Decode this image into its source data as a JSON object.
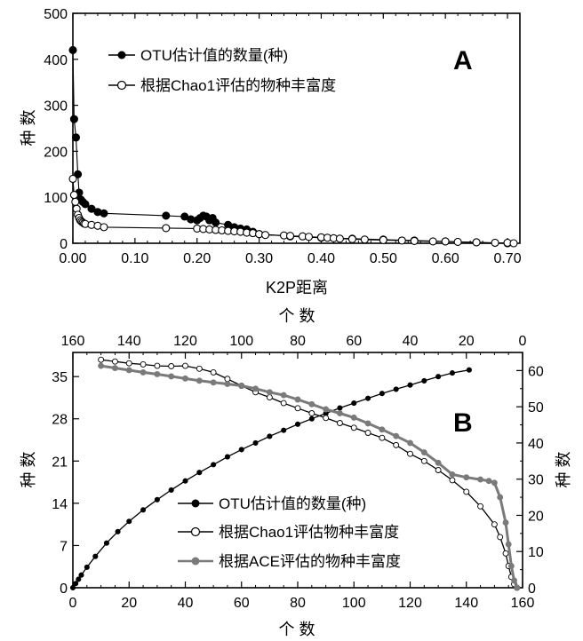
{
  "figure": {
    "colors": {
      "black": "#000000",
      "gray": "#7a7a7a",
      "white": "#ffffff"
    }
  },
  "chart_data": [
    {
      "id": "A",
      "type": "scatter",
      "panel_label": "A",
      "xlabel": "K2P距离",
      "ylabel": "种 数",
      "xlim": [
        0,
        0.72
      ],
      "ylim": [
        0,
        500
      ],
      "x_ticks": [
        0,
        0.1,
        0.2,
        0.3,
        0.4,
        0.5,
        0.6,
        0.7
      ],
      "x_tick_labels": [
        "0.00",
        "0.10",
        "0.20",
        "0.30",
        "0.40",
        "0.50",
        "0.60",
        "0.70"
      ],
      "y_ticks": [
        0,
        100,
        200,
        300,
        400,
        500
      ],
      "y_tick_labels": [
        "0",
        "100",
        "200",
        "300",
        "400",
        "500"
      ],
      "legend_position": "top-left",
      "grid": false,
      "series": [
        {
          "name": "OTU估计值的数量(种)",
          "marker": "filled-circle",
          "color": "#000000",
          "x": [
            0.0,
            0.002,
            0.005,
            0.008,
            0.01,
            0.013,
            0.016,
            0.02,
            0.03,
            0.04,
            0.05,
            0.15,
            0.18,
            0.19,
            0.2,
            0.205,
            0.21,
            0.215,
            0.22,
            0.225,
            0.23,
            0.25,
            0.26,
            0.27,
            0.28,
            0.29,
            0.3,
            0.35,
            0.4,
            0.45,
            0.5,
            0.55,
            0.6,
            0.65,
            0.7
          ],
          "y": [
            420,
            270,
            230,
            150,
            110,
            95,
            90,
            85,
            75,
            68,
            65,
            60,
            58,
            52,
            50,
            55,
            60,
            58,
            50,
            55,
            45,
            40,
            35,
            32,
            30,
            25,
            20,
            15,
            12,
            10,
            8,
            6,
            4,
            2,
            0
          ]
        },
        {
          "name": "根据Chao1评估的物种丰富度",
          "marker": "open-circle",
          "color": "#000000",
          "x": [
            0.0,
            0.002,
            0.004,
            0.006,
            0.008,
            0.01,
            0.012,
            0.014,
            0.016,
            0.018,
            0.02,
            0.03,
            0.04,
            0.05,
            0.15,
            0.2,
            0.21,
            0.22,
            0.23,
            0.24,
            0.25,
            0.26,
            0.27,
            0.28,
            0.29,
            0.3,
            0.31,
            0.34,
            0.35,
            0.37,
            0.38,
            0.4,
            0.41,
            0.42,
            0.43,
            0.45,
            0.47,
            0.5,
            0.53,
            0.55,
            0.58,
            0.6,
            0.62,
            0.65,
            0.68,
            0.7,
            0.71
          ],
          "y": [
            140,
            105,
            90,
            75,
            62,
            55,
            50,
            47,
            45,
            43,
            42,
            40,
            38,
            35,
            33,
            32,
            31,
            30,
            29,
            28,
            27,
            26,
            25,
            23,
            22,
            20,
            18,
            17,
            16,
            15,
            14,
            13,
            12,
            11,
            10,
            9,
            8,
            7,
            6,
            5,
            4,
            4,
            3,
            2,
            1,
            1,
            0
          ]
        }
      ]
    },
    {
      "id": "B",
      "type": "scatter",
      "panel_label": "B",
      "xlabel": "个 数",
      "x2label": "个 数",
      "ylabel": "种 数",
      "y2label": "种 数",
      "xlim": [
        0,
        160
      ],
      "x2lim": [
        160,
        0
      ],
      "ylim": [
        0,
        39
      ],
      "y2lim": [
        0,
        65
      ],
      "x_ticks": [
        0,
        20,
        40,
        60,
        80,
        100,
        120,
        140,
        160
      ],
      "x2_ticks": [
        160,
        140,
        120,
        100,
        80,
        60,
        40,
        20,
        0
      ],
      "y_ticks": [
        0,
        7,
        14,
        21,
        28,
        35
      ],
      "y2_ticks": [
        0,
        10,
        20,
        30,
        40,
        50,
        60
      ],
      "legend_position": "bottom-center",
      "grid": false,
      "series": [
        {
          "name": "OTU估计值的数量(种)",
          "marker": "filled-circle",
          "color": "#000000",
          "axis": "bottom-left",
          "x": [
            0,
            1,
            2,
            3,
            5,
            8,
            12,
            16,
            20,
            25,
            30,
            35,
            40,
            45,
            50,
            55,
            60,
            65,
            70,
            75,
            80,
            85,
            90,
            95,
            100,
            105,
            110,
            115,
            120,
            125,
            130,
            135,
            141
          ],
          "y": [
            0,
            0.7,
            1.4,
            2.1,
            3.4,
            5.2,
            7.4,
            9.3,
            11.0,
            12.9,
            14.6,
            16.2,
            17.7,
            19.1,
            20.4,
            21.7,
            22.9,
            24.0,
            25.1,
            26.1,
            27.1,
            28.0,
            28.9,
            29.8,
            30.6,
            31.4,
            32.2,
            32.9,
            33.6,
            34.3,
            35.0,
            35.6,
            36.1
          ]
        },
        {
          "name": "根据Chao1评估物种丰富度",
          "marker": "open-circle",
          "color": "#000000",
          "axis": "top-right",
          "x": [
            150,
            145,
            140,
            135,
            130,
            125,
            120,
            115,
            110,
            105,
            100,
            95,
            90,
            85,
            80,
            75,
            70,
            65,
            60,
            55,
            50,
            45,
            40,
            35,
            30,
            25,
            20,
            15,
            10,
            8,
            6,
            5,
            4,
            3,
            2
          ],
          "y": [
            63,
            62.5,
            62,
            61.7,
            61.3,
            61.2,
            61.3,
            60.5,
            59.5,
            57.7,
            55.8,
            54,
            52.6,
            51,
            49.6,
            48.2,
            46.9,
            45.5,
            44.2,
            42.8,
            41.4,
            39.4,
            37,
            35,
            32.5,
            29.7,
            26.5,
            22.5,
            17.5,
            14,
            9.5,
            6,
            3,
            1,
            0
          ]
        },
        {
          "name": "根据ACE评估的物种丰富度",
          "marker": "filled-circle",
          "color": "#7a7a7a",
          "axis": "top-right",
          "x": [
            150,
            145,
            140,
            135,
            130,
            125,
            120,
            115,
            110,
            105,
            100,
            95,
            90,
            85,
            80,
            75,
            70,
            65,
            60,
            55,
            50,
            45,
            40,
            35,
            30,
            25,
            20,
            15,
            12,
            10,
            8,
            6,
            5,
            4,
            3,
            2
          ],
          "y": [
            61.3,
            60.7,
            60.1,
            59.5,
            59,
            58.4,
            57.8,
            57.2,
            56.7,
            56.3,
            55.8,
            55,
            54,
            53.2,
            52,
            50.7,
            49.3,
            48.2,
            47,
            45.4,
            43.7,
            41.9,
            40,
            37.4,
            34.5,
            31.3,
            30.5,
            29.9,
            29.5,
            29,
            25,
            18,
            12,
            6,
            2,
            0
          ]
        }
      ]
    }
  ]
}
